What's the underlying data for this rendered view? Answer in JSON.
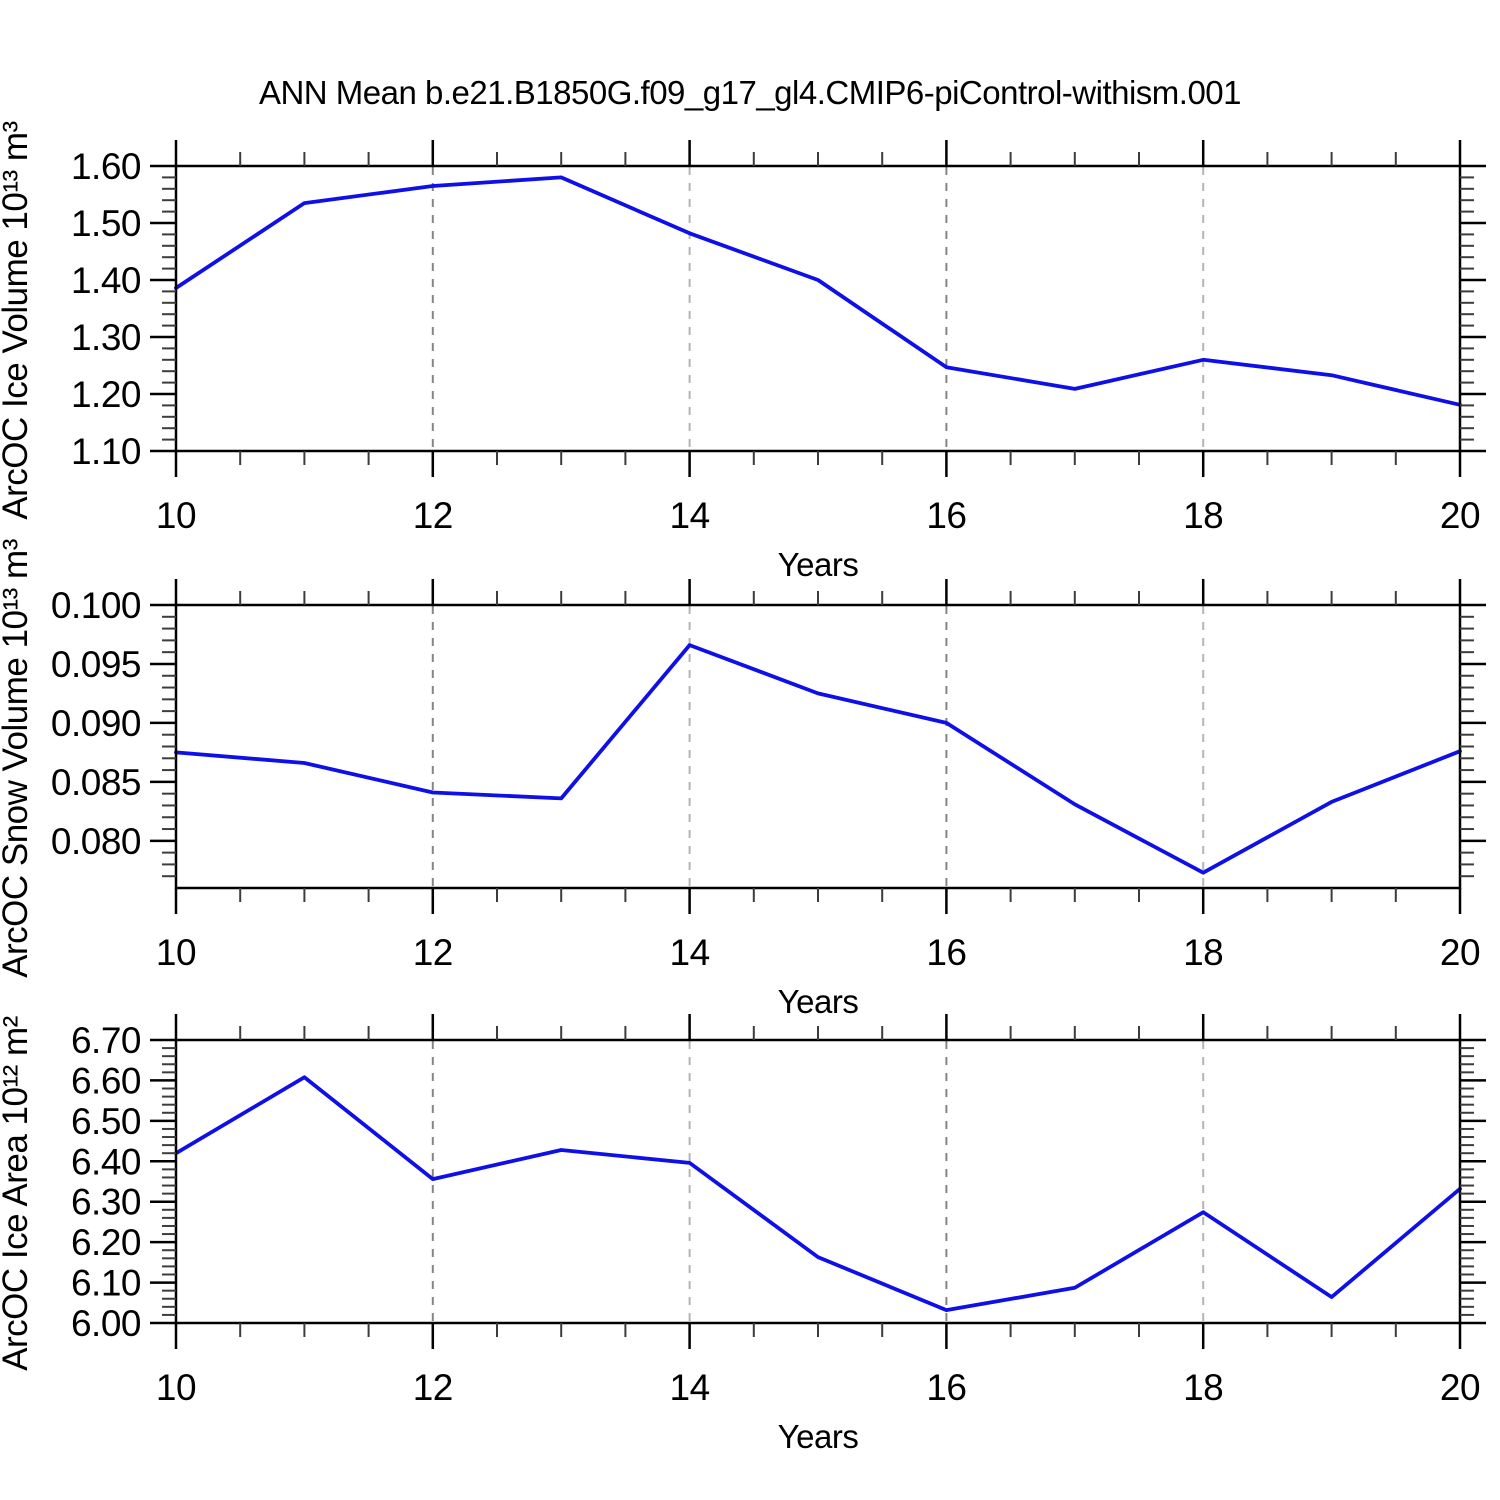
{
  "title": "ANN Mean b.e21.B1850G.f09_g17_gl4.CMIP6-piControl-withism.001",
  "colors": {
    "line": "#0f0fe8",
    "frame": "#000000",
    "major_tick": "#000000",
    "minor_tick": "#3c3c3c",
    "grid_dark": "#858585",
    "grid_light": "#b5b5b5",
    "background": "#ffffff"
  },
  "chart_data": [
    {
      "type": "line",
      "panel": "ice-volume",
      "ylabel": "ArcOC Ice Volume 10¹³ m³",
      "xlabel": "Years",
      "x": [
        10,
        11,
        12,
        13,
        14,
        15,
        16,
        17,
        18,
        19,
        20
      ],
      "values": [
        1.386,
        1.535,
        1.565,
        1.58,
        1.482,
        1.4,
        1.247,
        1.209,
        1.26,
        1.233,
        1.181
      ],
      "xlim": [
        10,
        20
      ],
      "ylim": [
        1.1,
        1.6
      ],
      "yticks": [
        1.1,
        1.2,
        1.3,
        1.4,
        1.5,
        1.6
      ],
      "ytick_labels": [
        "1.10",
        "1.20",
        "1.30",
        "1.40",
        "1.50",
        "1.60"
      ],
      "yminor_step": 0.02,
      "xticks": [
        10,
        12,
        14,
        16,
        18,
        20
      ],
      "xtick_labels": [
        "10",
        "12",
        "14",
        "16",
        "18",
        "20"
      ],
      "xminor_step": 0.5,
      "grid_x": [
        12,
        14,
        16,
        18
      ],
      "grid_on": "dashed-vertical",
      "legend": "none"
    },
    {
      "type": "line",
      "panel": "snow-volume",
      "ylabel": "ArcOC Snow Volume 10¹³ m³",
      "xlabel": "Years",
      "x": [
        10,
        11,
        12,
        13,
        14,
        15,
        16,
        17,
        18,
        19,
        20
      ],
      "values": [
        0.0875,
        0.0866,
        0.0841,
        0.0836,
        0.0966,
        0.0925,
        0.09,
        0.0831,
        0.0773,
        0.0833,
        0.0876
      ],
      "xlim": [
        10,
        20
      ],
      "ylim": [
        0.076,
        0.1
      ],
      "yticks": [
        0.08,
        0.085,
        0.09,
        0.095,
        0.1
      ],
      "ytick_labels": [
        "0.080",
        "0.085",
        "0.090",
        "0.095",
        "0.100"
      ],
      "yminor_step": 0.001,
      "xticks": [
        10,
        12,
        14,
        16,
        18,
        20
      ],
      "xtick_labels": [
        "10",
        "12",
        "14",
        "16",
        "18",
        "20"
      ],
      "xminor_step": 0.5,
      "grid_x": [
        12,
        14,
        16,
        18
      ],
      "grid_on": "dashed-vertical",
      "legend": "none"
    },
    {
      "type": "line",
      "panel": "ice-area",
      "ylabel": "ArcOC Ice Area 10¹² m²",
      "xlabel": "Years",
      "x": [
        10,
        11,
        12,
        13,
        14,
        15,
        16,
        17,
        18,
        19,
        20
      ],
      "values": [
        6.42,
        6.608,
        6.356,
        6.428,
        6.396,
        6.163,
        6.032,
        6.087,
        6.274,
        6.064,
        6.332
      ],
      "xlim": [
        10,
        20
      ],
      "ylim": [
        6.0,
        6.7
      ],
      "yticks": [
        6.0,
        6.1,
        6.2,
        6.3,
        6.4,
        6.5,
        6.6,
        6.7
      ],
      "ytick_labels": [
        "6.00",
        "6.10",
        "6.20",
        "6.30",
        "6.40",
        "6.50",
        "6.60",
        "6.70"
      ],
      "yminor_step": 0.02,
      "xticks": [
        10,
        12,
        14,
        16,
        18,
        20
      ],
      "xtick_labels": [
        "10",
        "12",
        "14",
        "16",
        "18",
        "20"
      ],
      "xminor_step": 0.5,
      "grid_x": [
        12,
        14,
        16,
        18
      ],
      "grid_on": "dashed-vertical",
      "legend": "none"
    }
  ]
}
